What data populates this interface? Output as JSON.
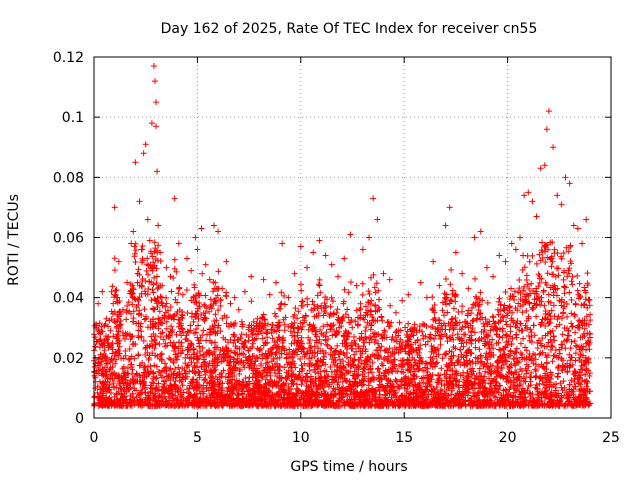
{
  "chart_data": {
    "type": "scatter",
    "title": "Day 162 of 2025, Rate Of TEC Index for receiver cn55",
    "xlabel": "GPS time / hours",
    "ylabel": "ROTI / TECUs",
    "xlim": [
      0,
      25
    ],
    "ylim": [
      0,
      0.12
    ],
    "xticks": [
      0,
      5,
      10,
      15,
      20,
      25
    ],
    "xtick_labels": [
      "0",
      "5",
      "10",
      "15",
      "20",
      "25"
    ],
    "yticks": [
      0,
      0.02,
      0.04,
      0.06,
      0.08,
      0.1,
      0.12
    ],
    "ytick_labels": [
      "0",
      "0.02",
      "0.04",
      "0.06",
      "0.08",
      "0.1",
      "0.12"
    ],
    "grid": true,
    "marker": "+",
    "series": [
      {
        "name": "ROTI",
        "color": "#ff0000",
        "x": [
          0.1,
          0.2,
          0.3,
          0.4,
          0.5,
          0.6,
          0.8,
          1.0,
          1.1,
          1.2,
          1.4,
          1.6,
          1.8,
          1.9,
          2.0,
          2.1,
          2.2,
          2.3,
          2.4,
          2.5,
          2.6,
          2.7,
          2.8,
          2.9,
          2.95,
          3.0,
          3.0,
          3.05,
          3.1,
          3.2,
          3.3,
          3.5,
          3.7,
          3.9,
          4.1,
          4.3,
          4.5,
          4.7,
          4.9,
          5.0,
          5.2,
          5.4,
          5.6,
          5.8,
          6.0,
          6.2,
          6.4,
          6.6,
          6.8,
          7.0,
          7.3,
          7.6,
          7.9,
          8.2,
          8.5,
          8.8,
          9.1,
          9.4,
          9.7,
          10.0,
          10.3,
          10.6,
          10.9,
          11.2,
          11.5,
          11.8,
          12.1,
          12.4,
          12.7,
          13.0,
          13.3,
          13.5,
          13.7,
          14.0,
          14.3,
          14.6,
          14.9,
          15.2,
          15.5,
          15.8,
          16.1,
          16.4,
          16.7,
          17.0,
          17.2,
          17.5,
          17.8,
          18.1,
          18.4,
          18.7,
          19.0,
          19.3,
          19.6,
          19.9,
          20.2,
          20.4,
          20.6,
          20.8,
          21.0,
          21.2,
          21.4,
          21.6,
          21.8,
          21.9,
          22.0,
          22.2,
          22.4,
          22.6,
          22.8,
          23.0,
          23.2,
          23.4,
          23.6,
          23.8
        ],
        "y": [
          0.03,
          0.038,
          0.028,
          0.042,
          0.025,
          0.033,
          0.029,
          0.07,
          0.04,
          0.052,
          0.036,
          0.045,
          0.058,
          0.062,
          0.085,
          0.048,
          0.072,
          0.056,
          0.088,
          0.091,
          0.066,
          0.059,
          0.098,
          0.117,
          0.112,
          0.105,
          0.097,
          0.082,
          0.064,
          0.055,
          0.044,
          0.05,
          0.047,
          0.073,
          0.058,
          0.041,
          0.053,
          0.049,
          0.06,
          0.056,
          0.063,
          0.051,
          0.046,
          0.064,
          0.062,
          0.043,
          0.052,
          0.038,
          0.04,
          0.036,
          0.042,
          0.047,
          0.033,
          0.046,
          0.041,
          0.045,
          0.058,
          0.04,
          0.048,
          0.057,
          0.05,
          0.055,
          0.059,
          0.054,
          0.051,
          0.047,
          0.053,
          0.061,
          0.044,
          0.056,
          0.06,
          0.073,
          0.066,
          0.048,
          0.046,
          0.035,
          0.039,
          0.041,
          0.03,
          0.045,
          0.04,
          0.052,
          0.044,
          0.064,
          0.07,
          0.055,
          0.048,
          0.043,
          0.06,
          0.062,
          0.05,
          0.047,
          0.054,
          0.052,
          0.058,
          0.056,
          0.06,
          0.074,
          0.075,
          0.072,
          0.067,
          0.083,
          0.084,
          0.096,
          0.102,
          0.09,
          0.074,
          0.071,
          0.08,
          0.078,
          0.064,
          0.063,
          0.058,
          0.066
        ]
      }
    ]
  }
}
